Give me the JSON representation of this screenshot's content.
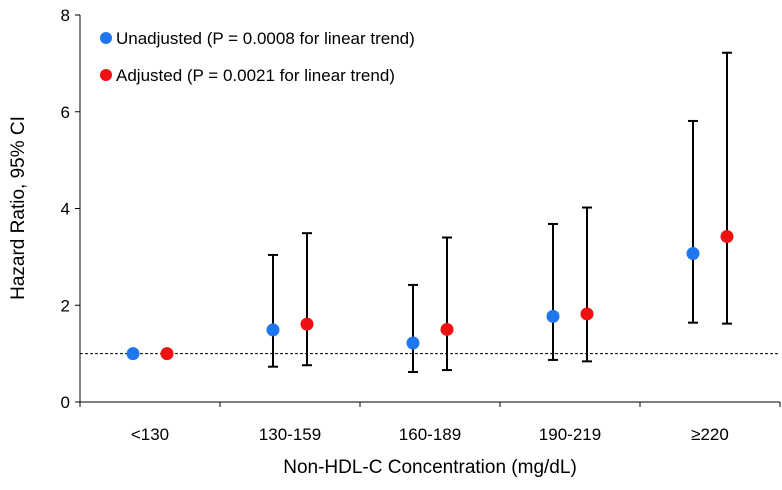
{
  "chart_data": {
    "type": "scatter",
    "xlabel": "Non-HDL-C Concentration (mg/dL)",
    "ylabel": "Hazard Ratio, 95% CI",
    "categories": [
      "<130",
      "130-159",
      "160-189",
      "190-219",
      "≥220"
    ],
    "ylim": [
      0,
      8
    ],
    "yticks": [
      "0",
      "2",
      "4",
      "6",
      "8"
    ],
    "reference_line": 1,
    "legend_position": "top-left",
    "grid": false,
    "series": [
      {
        "name": "Unadjusted (P = 0.0008 for linear trend)",
        "color": "#1f77f0",
        "values": [
          1.0,
          1.49,
          1.22,
          1.77,
          3.07
        ],
        "ci_low": [
          null,
          0.73,
          0.62,
          0.87,
          1.64
        ],
        "ci_high": [
          null,
          3.04,
          2.42,
          3.68,
          5.81
        ]
      },
      {
        "name": "Adjusted (P = 0.0021 for linear trend)",
        "color": "#ee1111",
        "values": [
          1.0,
          1.61,
          1.5,
          1.82,
          3.42
        ],
        "ci_low": [
          null,
          0.76,
          0.66,
          0.84,
          1.62
        ],
        "ci_high": [
          null,
          3.49,
          3.4,
          4.02,
          7.22
        ]
      }
    ]
  }
}
